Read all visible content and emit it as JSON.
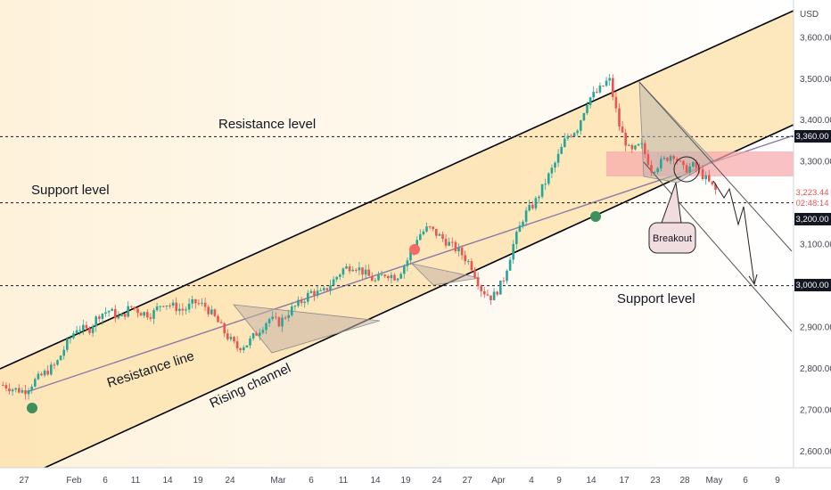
{
  "axis": {
    "currency": "USD",
    "price_ticks": [
      "3,600.00",
      "3,500.00",
      "3,400.00",
      "3,300.00",
      "3,200.00",
      "3,100.00",
      "3,000.00",
      "2,900.00",
      "2,800.00",
      "2,700.00",
      "2,600.00"
    ],
    "date_ticks": [
      "27",
      "Feb",
      "6",
      "11",
      "14",
      "19",
      "24",
      "Mar",
      "6",
      "11",
      "14",
      "19",
      "24",
      "27",
      "Apr",
      "4",
      "9",
      "14",
      "17",
      "23",
      "28",
      "May",
      "6",
      "9"
    ]
  },
  "price_tags": {
    "resistance": "3,360.00",
    "current_price": "3,223.44",
    "countdown": "02:48:14",
    "support_high": "3,200.00",
    "support_low": "3,000.00"
  },
  "annotations": {
    "resistance_level": "Resistance level",
    "support_level_left": "Support level",
    "support_level_right": "Support level",
    "resistance_line": "Resistance line",
    "rising_channel": "Rising channel",
    "breakout": "Breakout"
  },
  "colors": {
    "bull": "#26a69a",
    "bear": "#ef5350",
    "channel_fill": "#fde3b0",
    "zone_fill": "#f7a6aa",
    "marker_green": "#3d8f5e",
    "marker_red": "#f36b6b"
  },
  "chart_data": {
    "type": "candlestick",
    "ylim": [
      2560,
      3690
    ],
    "levels": [
      3360,
      3200,
      3000
    ],
    "last_price": 3223.44,
    "close_path": [
      2760,
      2750,
      2745,
      2770,
      2790,
      2810,
      2860,
      2900,
      2890,
      2930,
      2940,
      2920,
      2950,
      2935,
      2930,
      2960,
      2950,
      2940,
      2960,
      2950,
      2920,
      2880,
      2850,
      2860,
      2890,
      2920,
      2910,
      2940,
      2960,
      2985,
      2980,
      3010,
      3040,
      3050,
      3030,
      3010,
      3030,
      3020,
      3060,
      3120,
      3140,
      3120,
      3100,
      3080,
      3050,
      2990,
      2970,
      3010,
      3100,
      3170,
      3200,
      3250,
      3300,
      3360,
      3380,
      3450,
      3470,
      3500,
      3380,
      3320,
      3340,
      3280,
      3300,
      3320,
      3280,
      3290,
      3260,
      3230
    ]
  }
}
